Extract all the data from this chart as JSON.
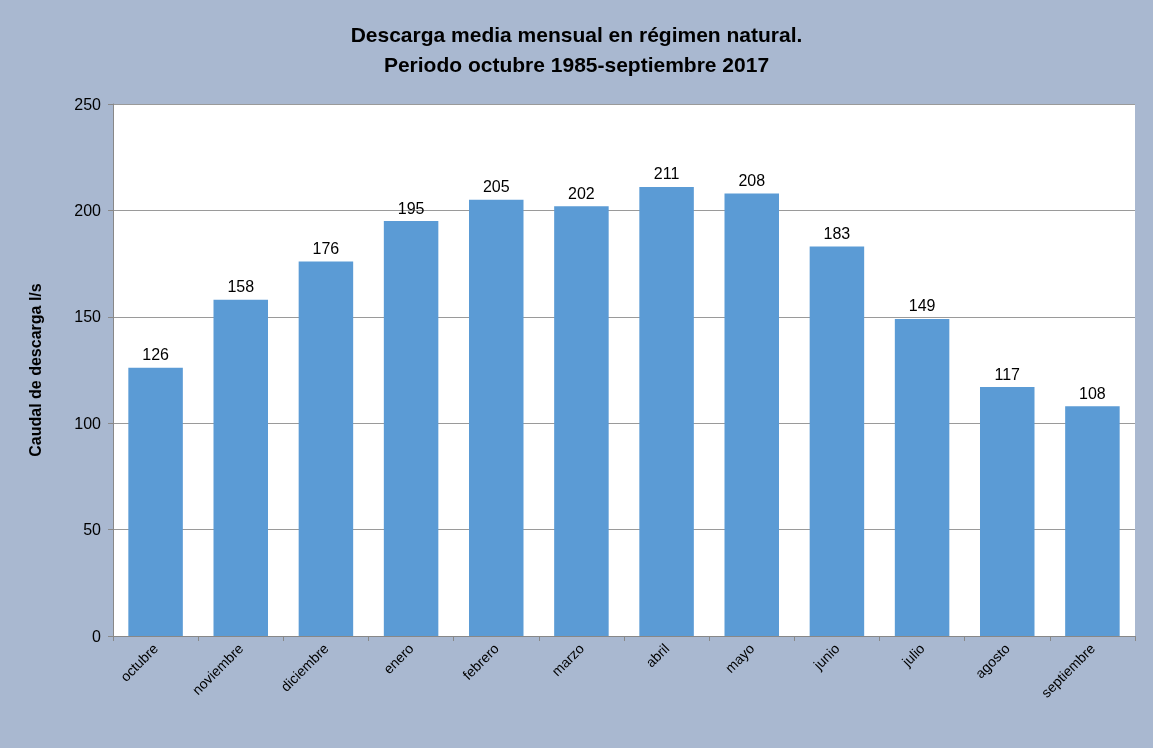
{
  "chart_data": {
    "type": "bar",
    "title": "Descarga media mensual en régimen natural.\nPeriodo octubre 1985-septiembre 2017",
    "ylabel": "Caudal de descarga l/s",
    "categories": [
      "octubre",
      "noviembre",
      "diciembre",
      "enero",
      "febrero",
      "marzo",
      "abril",
      "mayo",
      "junio",
      "julio",
      "agosto",
      "septiembre"
    ],
    "values": [
      126,
      158,
      176,
      195,
      205,
      202,
      211,
      208,
      183,
      149,
      117,
      108
    ],
    "color": "#5b9bd5",
    "ylim": [
      0,
      250
    ],
    "yticks": [
      0,
      50,
      100,
      150,
      200,
      250
    ],
    "grid": "y",
    "data_labels": true
  }
}
